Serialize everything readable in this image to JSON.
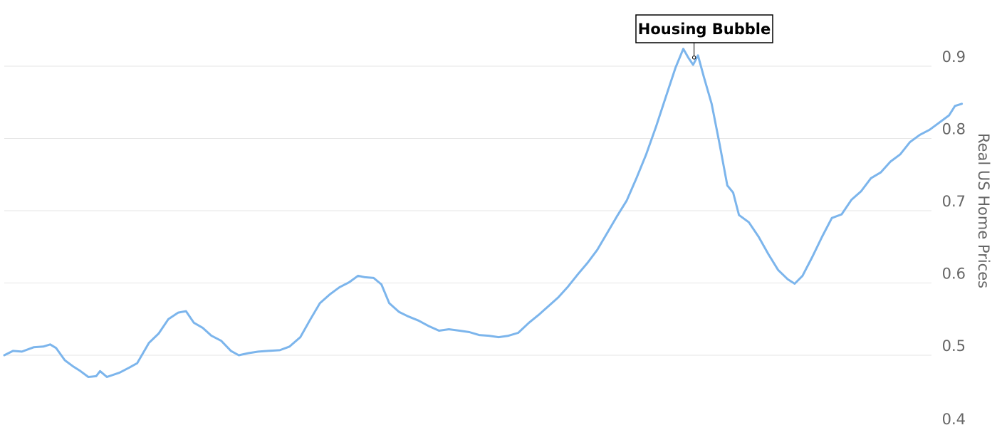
{
  "chart_data": {
    "type": "line",
    "title": "",
    "xlabel": "",
    "ylabel": "Real US Home Prices",
    "ylim": [
      0.4,
      0.9
    ],
    "yticks": [
      0.4,
      0.5,
      0.6,
      0.7,
      0.8,
      0.9
    ],
    "ytick_labels": [
      "0.4",
      "0.5",
      "0.6",
      "0.7",
      "0.8",
      "0.9"
    ],
    "grid": true,
    "legend": "none",
    "x_axis_visible": false,
    "annotation": {
      "text": "Housing Bubble",
      "x": 0.706,
      "y": 0.912
    },
    "series": [
      {
        "values": [
          [
            0.0,
            0.5
          ],
          [
            0.009,
            0.506
          ],
          [
            0.018,
            0.505
          ],
          [
            0.03,
            0.511
          ],
          [
            0.04,
            0.512
          ],
          [
            0.047,
            0.515
          ],
          [
            0.053,
            0.51
          ],
          [
            0.062,
            0.493
          ],
          [
            0.07,
            0.485
          ],
          [
            0.078,
            0.478
          ],
          [
            0.086,
            0.47
          ],
          [
            0.094,
            0.471
          ],
          [
            0.098,
            0.478
          ],
          [
            0.105,
            0.47
          ],
          [
            0.118,
            0.476
          ],
          [
            0.128,
            0.483
          ],
          [
            0.136,
            0.489
          ],
          [
            0.148,
            0.517
          ],
          [
            0.158,
            0.53
          ],
          [
            0.168,
            0.55
          ],
          [
            0.178,
            0.559
          ],
          [
            0.186,
            0.561
          ],
          [
            0.194,
            0.545
          ],
          [
            0.203,
            0.538
          ],
          [
            0.212,
            0.527
          ],
          [
            0.222,
            0.52
          ],
          [
            0.232,
            0.506
          ],
          [
            0.24,
            0.5
          ],
          [
            0.25,
            0.503
          ],
          [
            0.26,
            0.505
          ],
          [
            0.27,
            0.506
          ],
          [
            0.282,
            0.507
          ],
          [
            0.292,
            0.512
          ],
          [
            0.303,
            0.525
          ],
          [
            0.313,
            0.549
          ],
          [
            0.323,
            0.572
          ],
          [
            0.333,
            0.584
          ],
          [
            0.343,
            0.594
          ],
          [
            0.353,
            0.601
          ],
          [
            0.362,
            0.61
          ],
          [
            0.369,
            0.608
          ],
          [
            0.378,
            0.607
          ],
          [
            0.386,
            0.598
          ],
          [
            0.394,
            0.572
          ],
          [
            0.404,
            0.56
          ],
          [
            0.413,
            0.554
          ],
          [
            0.424,
            0.548
          ],
          [
            0.435,
            0.54
          ],
          [
            0.445,
            0.534
          ],
          [
            0.455,
            0.536
          ],
          [
            0.466,
            0.534
          ],
          [
            0.476,
            0.532
          ],
          [
            0.486,
            0.528
          ],
          [
            0.496,
            0.527
          ],
          [
            0.506,
            0.525
          ],
          [
            0.516,
            0.527
          ],
          [
            0.526,
            0.531
          ],
          [
            0.537,
            0.545
          ],
          [
            0.547,
            0.556
          ],
          [
            0.557,
            0.568
          ],
          [
            0.567,
            0.58
          ],
          [
            0.577,
            0.595
          ],
          [
            0.587,
            0.612
          ],
          [
            0.597,
            0.628
          ],
          [
            0.607,
            0.646
          ],
          [
            0.617,
            0.669
          ],
          [
            0.627,
            0.692
          ],
          [
            0.637,
            0.714
          ],
          [
            0.647,
            0.745
          ],
          [
            0.657,
            0.778
          ],
          [
            0.667,
            0.816
          ],
          [
            0.677,
            0.857
          ],
          [
            0.687,
            0.898
          ],
          [
            0.695,
            0.924
          ],
          [
            0.7,
            0.912
          ],
          [
            0.705,
            0.902
          ],
          [
            0.71,
            0.915
          ],
          [
            0.716,
            0.885
          ],
          [
            0.724,
            0.848
          ],
          [
            0.732,
            0.793
          ],
          [
            0.74,
            0.735
          ],
          [
            0.746,
            0.725
          ],
          [
            0.752,
            0.694
          ],
          [
            0.762,
            0.684
          ],
          [
            0.772,
            0.664
          ],
          [
            0.782,
            0.64
          ],
          [
            0.792,
            0.618
          ],
          [
            0.802,
            0.605
          ],
          [
            0.809,
            0.599
          ],
          [
            0.817,
            0.61
          ],
          [
            0.827,
            0.636
          ],
          [
            0.837,
            0.664
          ],
          [
            0.847,
            0.69
          ],
          [
            0.857,
            0.695
          ],
          [
            0.867,
            0.715
          ],
          [
            0.877,
            0.727
          ],
          [
            0.887,
            0.745
          ],
          [
            0.897,
            0.753
          ],
          [
            0.907,
            0.768
          ],
          [
            0.917,
            0.778
          ],
          [
            0.927,
            0.795
          ],
          [
            0.937,
            0.805
          ],
          [
            0.947,
            0.812
          ],
          [
            0.957,
            0.822
          ],
          [
            0.967,
            0.832
          ],
          [
            0.973,
            0.845
          ],
          [
            0.98,
            0.848
          ]
        ]
      }
    ]
  }
}
